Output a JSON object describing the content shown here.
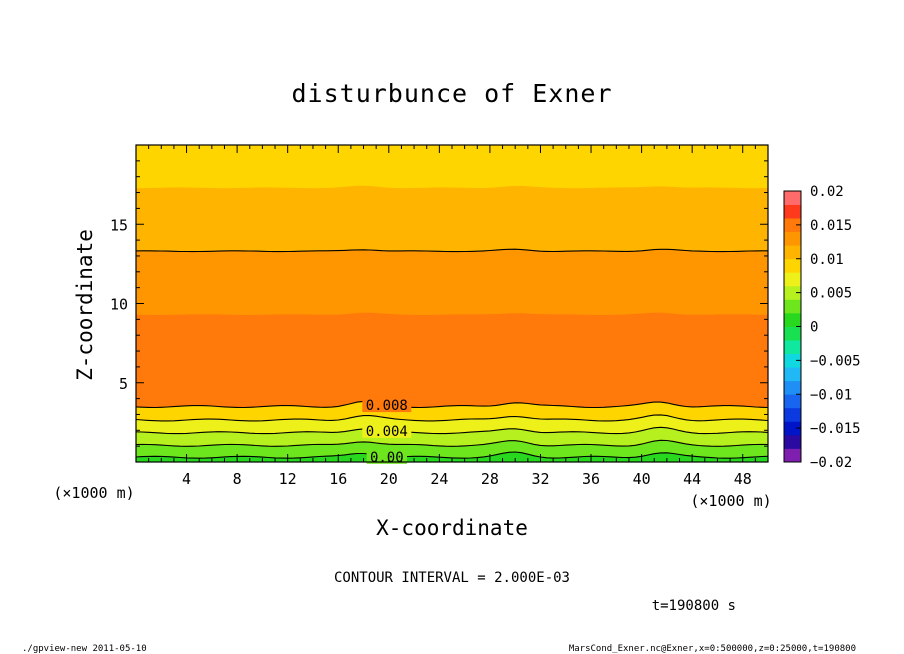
{
  "chart_data": {
    "type": "heatmap",
    "title": "disturbunce of Exner",
    "xlabel": "X-coordinate",
    "ylabel": "Z-coordinate",
    "x_unit": "(×1000 m)",
    "y_unit": "(×1000 m)",
    "xlim": [
      0,
      50
    ],
    "ylim": [
      0,
      20
    ],
    "x_ticks": [
      4,
      8,
      12,
      16,
      20,
      24,
      28,
      32,
      36,
      40,
      44,
      48
    ],
    "y_ticks": [
      5,
      10,
      15
    ],
    "contour_interval_text": "CONTOUR INTERVAL = 2.000E-03",
    "time_text": "t=190800 s",
    "footer_left": "./gpview-new  2011-05-10",
    "footer_right": "MarsCond_Exner.nc@Exner,x=0:500000,z=0:25000,t=190800",
    "colorbar": {
      "ticks": [
        0.02,
        0.015,
        0.01,
        0.005,
        0,
        -0.005,
        -0.01,
        -0.015,
        -0.02
      ],
      "tick_labels": [
        "0.02",
        "0.015",
        "0.01",
        "0.005",
        "0",
        "−0.005",
        "−0.01",
        "−0.015",
        "−0.02"
      ],
      "levels": [
        -0.02,
        -0.018,
        -0.016,
        -0.014,
        -0.012,
        -0.01,
        -0.008,
        -0.006,
        -0.004,
        -0.002,
        0,
        0.002,
        0.004,
        0.006,
        0.008,
        0.01,
        0.012,
        0.014,
        0.016,
        0.018,
        0.02
      ],
      "colors": [
        "#7f1fb0",
        "#2a0aa0",
        "#0014c8",
        "#0a3ae0",
        "#1866f0",
        "#1f8ef5",
        "#20b8f5",
        "#10d8e0",
        "#10e8a0",
        "#18e050",
        "#28d81e",
        "#6ee61e",
        "#b6f01e",
        "#eef01a",
        "#ffd500",
        "#ffb400",
        "#ff9600",
        "#ff7a0a",
        "#ff3a1c",
        "#ff6a6a"
      ]
    },
    "bands": [
      {
        "z_top": 0.3,
        "level": 0.0
      },
      {
        "z_top": 1.05,
        "level": 0.002
      },
      {
        "z_top": 1.85,
        "level": 0.004
      },
      {
        "z_top": 2.65,
        "level": 0.006
      },
      {
        "z_top": 3.5,
        "level": 0.008
      },
      {
        "z_top": 9.3,
        "level": 0.014
      },
      {
        "z_top": 13.3,
        "level": 0.012
      },
      {
        "z_top": 17.3,
        "level": 0.01
      },
      {
        "z_top": 20.0,
        "level": 0.008
      }
    ],
    "contour_lines": [
      {
        "z": 0.3,
        "label": "0.00"
      },
      {
        "z": 1.05,
        "label": ""
      },
      {
        "z": 1.85,
        "label": "0.004"
      },
      {
        "z": 2.65,
        "label": ""
      },
      {
        "z": 3.5,
        "label": "0.008"
      },
      {
        "z": 13.3,
        "label": ""
      }
    ],
    "bumps_x": [
      18,
      30,
      41.5
    ]
  }
}
